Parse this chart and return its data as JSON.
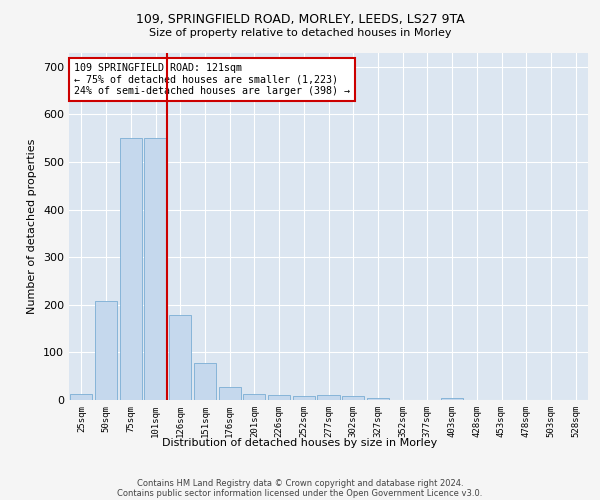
{
  "title1": "109, SPRINGFIELD ROAD, MORLEY, LEEDS, LS27 9TA",
  "title2": "Size of property relative to detached houses in Morley",
  "xlabel": "Distribution of detached houses by size in Morley",
  "ylabel": "Number of detached properties",
  "bar_labels": [
    "25sqm",
    "50sqm",
    "75sqm",
    "101sqm",
    "126sqm",
    "151sqm",
    "176sqm",
    "201sqm",
    "226sqm",
    "252sqm",
    "277sqm",
    "302sqm",
    "327sqm",
    "352sqm",
    "377sqm",
    "403sqm",
    "428sqm",
    "453sqm",
    "478sqm",
    "503sqm",
    "528sqm"
  ],
  "bar_values": [
    13,
    207,
    550,
    550,
    178,
    78,
    28,
    12,
    10,
    8,
    10,
    8,
    5,
    0,
    0,
    5,
    0,
    0,
    0,
    0,
    0
  ],
  "bar_color": "#c5d8ed",
  "bar_edge_color": "#7aadd4",
  "vline_x_index": 3,
  "vline_color": "#cc0000",
  "annotation_line1": "109 SPRINGFIELD ROAD: 121sqm",
  "annotation_line2": "← 75% of detached houses are smaller (1,223)",
  "annotation_line3": "24% of semi-detached houses are larger (398) →",
  "annotation_box_color": "#ffffff",
  "annotation_box_edge": "#cc0000",
  "ylim": [
    0,
    730
  ],
  "yticks": [
    0,
    100,
    200,
    300,
    400,
    500,
    600,
    700
  ],
  "footer_text": "Contains HM Land Registry data © Crown copyright and database right 2024.\nContains public sector information licensed under the Open Government Licence v3.0.",
  "fig_bg_color": "#f5f5f5",
  "plot_bg_color": "#dce6f1",
  "grid_color": "#ffffff"
}
